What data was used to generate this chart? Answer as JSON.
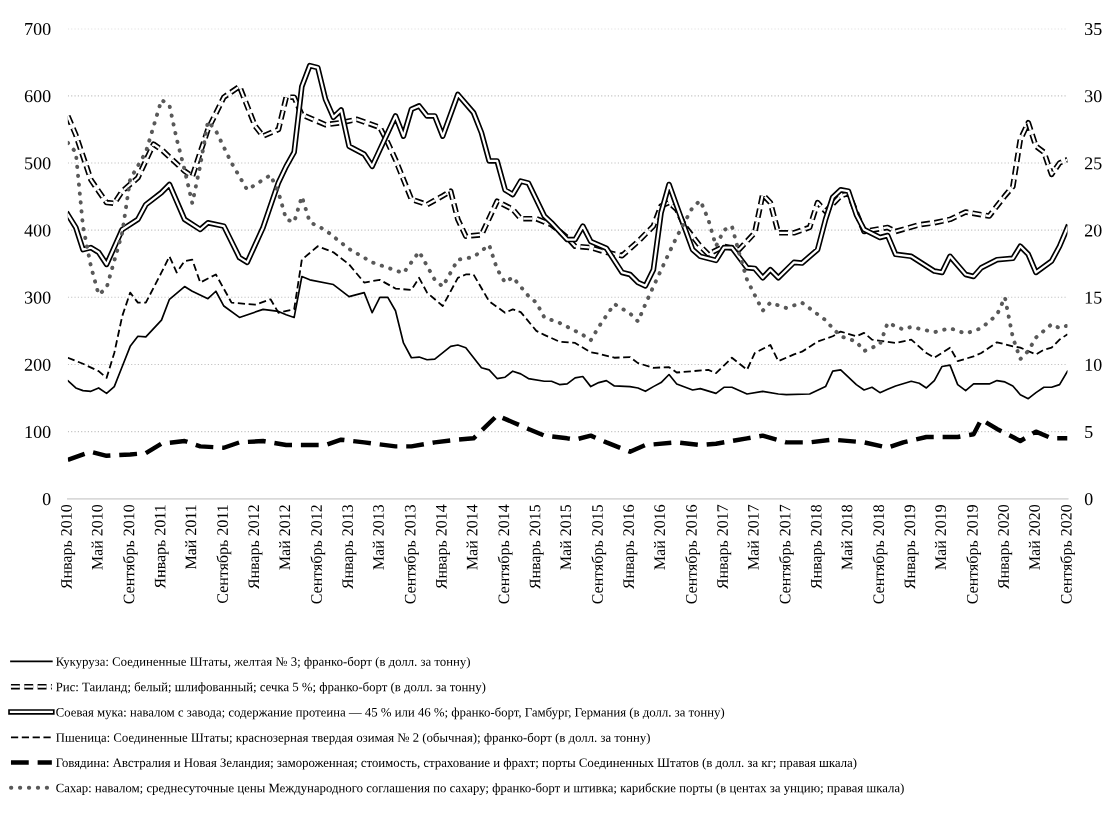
{
  "chart_data": {
    "type": "line",
    "xlim": [
      "2010-01",
      "2020-09"
    ],
    "xticks": [
      {
        "value": "2010-01",
        "label": "Январь 2010"
      },
      {
        "value": "2010-05",
        "label": "Май 2010"
      },
      {
        "value": "2010-09",
        "label": "Сентябрь 2010"
      },
      {
        "value": "2011-01",
        "label": "Январь 2011"
      },
      {
        "value": "2011-05",
        "label": "Май 2011"
      },
      {
        "value": "2011-09",
        "label": "Сентябрь 2011"
      },
      {
        "value": "2012-01",
        "label": "Январь 2012"
      },
      {
        "value": "2012-05",
        "label": "Май 2012"
      },
      {
        "value": "2012-09",
        "label": "Сентябрь 2012"
      },
      {
        "value": "2013-01",
        "label": "Январь 2013"
      },
      {
        "value": "2013-05",
        "label": "Май 2013"
      },
      {
        "value": "2013-09",
        "label": "Сентябрь 2013"
      },
      {
        "value": "2014-01",
        "label": "Январь 2014"
      },
      {
        "value": "2014-05",
        "label": "Май 2014"
      },
      {
        "value": "2014-09",
        "label": "Сентябрь 2014"
      },
      {
        "value": "2015-01",
        "label": "Январь 2015"
      },
      {
        "value": "2015-05",
        "label": "Май 2015"
      },
      {
        "value": "2015-09",
        "label": "Сентябрь 2015"
      },
      {
        "value": "2016-01",
        "label": "Январь 2016"
      },
      {
        "value": "2016-05",
        "label": "Май 2016"
      },
      {
        "value": "2016-09",
        "label": "Сентябрь 2016"
      },
      {
        "value": "2017-01",
        "label": "Январь 2017"
      },
      {
        "value": "2017-05",
        "label": "Май 2017"
      },
      {
        "value": "2017-09",
        "label": "Сентябрь 2017"
      },
      {
        "value": "2018-01",
        "label": "Январь 2018"
      },
      {
        "value": "2018-05",
        "label": "Май 2018"
      },
      {
        "value": "2018-09",
        "label": "Сентябрь 2018"
      },
      {
        "value": "2019-01",
        "label": "Январь 2019"
      },
      {
        "value": "2019-05",
        "label": "Май 2019"
      },
      {
        "value": "2019-09",
        "label": "Сентябрь 2019"
      },
      {
        "value": "2020-01",
        "label": "Январь 2020"
      },
      {
        "value": "2020-05",
        "label": "Май 2020"
      },
      {
        "value": "2020-09",
        "label": "Сентябрь 2020"
      }
    ],
    "ylim": [
      0,
      700
    ],
    "yticks": [
      0,
      100,
      200,
      300,
      400,
      500,
      600,
      700
    ],
    "y2lim": [
      0,
      35
    ],
    "y2ticks": [
      0,
      5,
      10,
      15,
      20,
      25,
      30,
      35
    ],
    "grid": "y",
    "legend": "bottom",
    "marker": "none",
    "series": [
      {
        "name": "Кукуруза: Соединенные Штаты, желтая № 3; франко-борт (в долл. за тонну)",
        "color": "#000000",
        "line_style": "solid",
        "x": [
          "2010-01",
          "2010-02",
          "2010-03",
          "2010-04",
          "2010-05",
          "2010-06",
          "2010-07",
          "2010-08",
          "2010-09",
          "2010-10",
          "2010-11",
          "2011-01",
          "2011-02",
          "2011-04",
          "2011-05",
          "2011-07",
          "2011-08",
          "2011-09",
          "2011-11",
          "2012-02",
          "2012-04",
          "2012-05",
          "2012-06",
          "2012-07",
          "2012-08",
          "2012-11",
          "2013-01",
          "2013-03",
          "2013-04",
          "2013-05",
          "2013-06",
          "2013-07",
          "2013-08",
          "2013-09",
          "2013-10",
          "2013-11",
          "2013-12",
          "2014-02",
          "2014-03",
          "2014-04",
          "2014-06",
          "2014-07",
          "2014-08",
          "2014-09",
          "2014-10",
          "2014-11",
          "2014-12",
          "2015-02",
          "2015-03",
          "2015-04",
          "2015-05",
          "2015-06",
          "2015-07",
          "2015-08",
          "2015-09",
          "2015-10",
          "2015-11",
          "2016-01",
          "2016-02",
          "2016-03",
          "2016-04",
          "2016-05",
          "2016-06",
          "2016-07",
          "2016-09",
          "2016-10",
          "2016-12",
          "2017-01",
          "2017-02",
          "2017-04",
          "2017-06",
          "2017-08",
          "2017-09",
          "2017-12",
          "2018-02",
          "2018-03",
          "2018-04",
          "2018-06",
          "2018-07",
          "2018-08",
          "2018-09",
          "2018-10",
          "2018-11",
          "2019-01",
          "2019-02",
          "2019-03",
          "2019-04",
          "2019-05",
          "2019-06",
          "2019-07",
          "2019-08",
          "2019-09",
          "2019-11",
          "2019-12",
          "2020-01",
          "2020-02",
          "2020-03",
          "2020-04",
          "2020-05",
          "2020-06",
          "2020-07",
          "2020-08",
          "2020-09"
        ],
        "values": [
          176,
          165,
          161,
          160,
          165,
          157,
          167,
          197,
          227,
          242,
          241,
          266,
          297,
          316,
          309,
          298,
          309,
          287,
          270,
          282,
          279,
          274,
          270,
          331,
          326,
          319,
          301,
          307,
          277,
          300,
          300,
          280,
          232,
          210,
          211,
          207,
          208,
          227,
          229,
          225,
          195,
          192,
          179,
          181,
          190,
          186,
          179,
          175,
          175,
          170,
          171,
          180,
          182,
          167,
          173,
          176,
          168,
          167,
          165,
          160,
          167,
          173,
          185,
          171,
          162,
          164,
          157,
          166,
          166,
          156,
          160,
          156,
          155,
          156,
          167,
          190,
          192,
          170,
          162,
          166,
          158,
          163,
          168,
          175,
          172,
          165,
          176,
          197,
          199,
          170,
          161,
          171,
          171,
          176,
          174,
          168,
          155,
          149,
          158,
          166,
          166,
          170,
          190
        ]
      },
      {
        "name": "Рис: Таиланд; белый; шлифованный; сечка 5 %; франко-борт (в долл. за тонну)",
        "color": "#000000",
        "line_style": "dashed",
        "x": [
          "2010-01",
          "2010-02",
          "2010-04",
          "2010-05",
          "2010-06",
          "2010-07",
          "2010-08",
          "2010-10",
          "2010-12",
          "2011-01",
          "2011-04",
          "2011-05",
          "2011-07",
          "2011-09",
          "2011-11",
          "2012-01",
          "2012-02",
          "2012-04",
          "2012-05",
          "2012-06",
          "2012-07",
          "2012-10",
          "2012-12",
          "2013-02",
          "2013-05",
          "2013-06",
          "2013-07",
          "2013-09",
          "2013-11",
          "2014-01",
          "2014-02",
          "2014-03",
          "2014-04",
          "2014-06",
          "2014-08",
          "2014-10",
          "2014-11",
          "2015-01",
          "2015-03",
          "2015-05",
          "2015-06",
          "2015-08",
          "2015-10",
          "2015-12",
          "2016-02",
          "2016-04",
          "2016-05",
          "2016-06",
          "2016-07",
          "2016-08",
          "2016-10",
          "2016-11",
          "2017-01",
          "2017-03",
          "2017-05",
          "2017-06",
          "2017-07",
          "2017-08",
          "2017-10",
          "2017-12",
          "2018-01",
          "2018-02",
          "2018-04",
          "2018-05",
          "2018-07",
          "2018-10",
          "2018-11",
          "2019-02",
          "2019-04",
          "2019-06",
          "2019-08",
          "2019-11",
          "2019-12",
          "2020-01",
          "2020-02",
          "2020-03",
          "2020-04",
          "2020-05",
          "2020-06",
          "2020-07",
          "2020-08",
          "2020-09"
        ],
        "values": [
          570,
          542,
          475,
          458,
          441,
          440,
          458,
          478,
          528,
          520,
          488,
          480,
          550,
          598,
          614,
          555,
          540,
          550,
          598,
          598,
          572,
          557,
          560,
          565,
          553,
          530,
          505,
          446,
          438,
          451,
          458,
          416,
          391,
          393,
          443,
          431,
          417,
          417,
          408,
          389,
          376,
          374,
          367,
          362,
          383,
          406,
          436,
          441,
          431,
          406,
          376,
          364,
          376,
          371,
          396,
          453,
          441,
          396,
          396,
          404,
          441,
          428,
          451,
          455,
          398,
          404,
          398,
          408,
          411,
          416,
          427,
          421,
          436,
          451,
          465,
          535,
          560,
          525,
          516,
          483,
          500,
          505
        ]
      },
      {
        "name": "Соевая мука: навалом с завода; содержание протеина — 45 % или 46 %; франко-борт, Гамбург, Германия (в долл. за тонну)",
        "color": "#000000",
        "line_style": "solid",
        "x": [
          "2010-01",
          "2010-02",
          "2010-03",
          "2010-04",
          "2010-05",
          "2010-06",
          "2010-08",
          "2010-10",
          "2010-11",
          "2011-01",
          "2011-02",
          "2011-04",
          "2011-06",
          "2011-07",
          "2011-09",
          "2011-11",
          "2011-12",
          "2012-02",
          "2012-04",
          "2012-05",
          "2012-06",
          "2012-07",
          "2012-08",
          "2012-09",
          "2012-10",
          "2012-11",
          "2012-12",
          "2013-01",
          "2013-03",
          "2013-04",
          "2013-07",
          "2013-08",
          "2013-09",
          "2013-10",
          "2013-11",
          "2013-12",
          "2014-01",
          "2014-03",
          "2014-05",
          "2014-06",
          "2014-07",
          "2014-08",
          "2014-09",
          "2014-10",
          "2014-11",
          "2014-12",
          "2015-02",
          "2015-03",
          "2015-05",
          "2015-06",
          "2015-07",
          "2015-08",
          "2015-10",
          "2015-12",
          "2016-01",
          "2016-02",
          "2016-03",
          "2016-04",
          "2016-05",
          "2016-06",
          "2016-07",
          "2016-09",
          "2016-10",
          "2016-12",
          "2017-01",
          "2017-02",
          "2017-04",
          "2017-05",
          "2017-06",
          "2017-07",
          "2017-08",
          "2017-10",
          "2017-11",
          "2018-01",
          "2018-02",
          "2018-03",
          "2018-04",
          "2018-05",
          "2018-06",
          "2018-07",
          "2018-09",
          "2018-10",
          "2018-11",
          "2019-01",
          "2019-04",
          "2019-05",
          "2019-06",
          "2019-08",
          "2019-09",
          "2019-10",
          "2019-12",
          "2020-02",
          "2020-03",
          "2020-04",
          "2020-05",
          "2020-07",
          "2020-08",
          "2020-09"
        ],
        "values": [
          423,
          404,
          371,
          374,
          367,
          349,
          401,
          416,
          438,
          456,
          468,
          416,
          401,
          411,
          406,
          359,
          352,
          404,
          471,
          495,
          516,
          614,
          645,
          642,
          595,
          568,
          579,
          525,
          513,
          495,
          570,
          540,
          580,
          585,
          570,
          570,
          540,
          602,
          575,
          545,
          503,
          503,
          460,
          453,
          473,
          470,
          421,
          411,
          386,
          386,
          406,
          383,
          373,
          337,
          334,
          322,
          317,
          341,
          426,
          468,
          436,
          371,
          361,
          355,
          374,
          374,
          344,
          343,
          329,
          341,
          329,
          352,
          351,
          371,
          416,
          449,
          460,
          458,
          423,
          401,
          389,
          392,
          364,
          361,
          339,
          337,
          361,
          334,
          331,
          344,
          356,
          358,
          376,
          364,
          337,
          354,
          376,
          404
        ]
      },
      {
        "name": "Пшеница: Соединенные Штаты; краснозерная твердая озимая № 2 (обычная); франко-борт (в долл. за тонну)",
        "color": "#000000",
        "line_style": "dashed",
        "x": [
          "2010-01",
          "2010-03",
          "2010-05",
          "2010-06",
          "2010-07",
          "2010-08",
          "2010-09",
          "2010-10",
          "2010-11",
          "2011-01",
          "2011-02",
          "2011-03",
          "2011-04",
          "2011-05",
          "2011-06",
          "2011-08",
          "2011-10",
          "2012-01",
          "2012-03",
          "2012-04",
          "2012-06",
          "2012-07",
          "2012-09",
          "2012-11",
          "2013-01",
          "2013-03",
          "2013-05",
          "2013-07",
          "2013-09",
          "2013-10",
          "2013-11",
          "2014-01",
          "2014-03",
          "2014-04",
          "2014-05",
          "2014-07",
          "2014-09",
          "2014-10",
          "2014-11",
          "2015-01",
          "2015-02",
          "2015-04",
          "2015-06",
          "2015-08",
          "2015-09",
          "2015-11",
          "2016-01",
          "2016-02",
          "2016-04",
          "2016-06",
          "2016-07",
          "2016-09",
          "2016-11",
          "2016-12",
          "2017-02",
          "2017-04",
          "2017-05",
          "2017-07",
          "2017-08",
          "2017-10",
          "2017-11",
          "2018-01",
          "2018-03",
          "2018-04",
          "2018-06",
          "2018-07",
          "2018-08",
          "2018-11",
          "2019-01",
          "2019-03",
          "2019-04",
          "2019-06",
          "2019-07",
          "2019-09",
          "2019-10",
          "2019-12",
          "2020-02",
          "2020-03",
          "2020-05",
          "2020-06",
          "2020-07",
          "2020-08",
          "2020-09"
        ],
        "values": [
          210,
          201,
          190,
          180,
          217,
          272,
          307,
          292,
          292,
          337,
          361,
          337,
          354,
          356,
          322,
          334,
          292,
          289,
          297,
          277,
          282,
          356,
          376,
          367,
          349,
          322,
          326,
          313,
          311,
          329,
          307,
          287,
          329,
          334,
          334,
          294,
          277,
          282,
          278,
          250,
          244,
          234,
          232,
          218,
          216,
          210,
          211,
          202,
          195,
          196,
          188,
          190,
          192,
          187,
          210,
          192,
          217,
          229,
          205,
          215,
          219,
          234,
          242,
          249,
          242,
          247,
          237,
          232,
          237,
          217,
          210,
          225,
          205,
          212,
          217,
          233,
          227,
          225,
          215,
          222,
          225,
          237,
          245
        ]
      },
      {
        "name": "Говядина: Австралия и Новая Зеландия; замороженная; стоимость, страхование и фрахт; порты Соединенных Штатов (в долл. за кг; правая шкала)",
        "color": "#000000",
        "line_style": "dashed",
        "axis": "y2",
        "x": [
          "2010-01",
          "2010-04",
          "2010-06",
          "2010-09",
          "2010-11",
          "2011-01",
          "2011-04",
          "2011-06",
          "2011-09",
          "2011-11",
          "2012-02",
          "2012-05",
          "2012-10",
          "2012-12",
          "2013-03",
          "2013-07",
          "2013-09",
          "2013-12",
          "2014-03",
          "2014-05",
          "2014-08",
          "2014-10",
          "2014-12",
          "2015-02",
          "2015-05",
          "2015-06",
          "2015-08",
          "2015-10",
          "2016-01",
          "2016-03",
          "2016-07",
          "2016-10",
          "2016-12",
          "2017-04",
          "2017-06",
          "2017-09",
          "2017-12",
          "2018-03",
          "2018-07",
          "2018-10",
          "2018-12",
          "2019-03",
          "2019-07",
          "2019-09",
          "2019-10",
          "2019-12",
          "2020-02",
          "2020-03",
          "2020-05",
          "2020-07",
          "2020-09"
        ],
        "values": [
          2.9,
          3.5,
          3.2,
          3.3,
          3.4,
          4.1,
          4.3,
          3.9,
          3.8,
          4.2,
          4.3,
          4.0,
          4.0,
          4.4,
          4.2,
          3.9,
          3.9,
          4.2,
          4.4,
          4.5,
          6.2,
          5.7,
          5.2,
          4.7,
          4.5,
          4.4,
          4.7,
          4.2,
          3.5,
          4.0,
          4.2,
          4.0,
          4.1,
          4.5,
          4.7,
          4.2,
          4.2,
          4.4,
          4.2,
          3.8,
          4.2,
          4.6,
          4.6,
          4.8,
          5.9,
          5.2,
          4.6,
          4.3,
          5.0,
          4.5,
          4.5
        ]
      },
      {
        "name": "Сахар: навалом; среднесуточные цены Международного соглашения по сахару; франко-борт и штивка; карибские порты (в центах за унцию; правая шкала)",
        "color": "#595959",
        "line_style": "dotted",
        "axis": "y2",
        "x": [
          "2010-01",
          "2010-02",
          "2010-03",
          "2010-04",
          "2010-05",
          "2010-06",
          "2010-08",
          "2010-09",
          "2010-11",
          "2011-01",
          "2011-02",
          "2011-03",
          "2011-04",
          "2011-05",
          "2011-06",
          "2011-07",
          "2011-08",
          "2011-10",
          "2011-12",
          "2012-03",
          "2012-04",
          "2012-05",
          "2012-06",
          "2012-07",
          "2012-08",
          "2012-10",
          "2013-01",
          "2013-04",
          "2013-08",
          "2013-10",
          "2013-12",
          "2014-01",
          "2014-03",
          "2014-05",
          "2014-07",
          "2014-08",
          "2014-09",
          "2014-10",
          "2014-12",
          "2015-01",
          "2015-02",
          "2015-04",
          "2015-06",
          "2015-07",
          "2015-08",
          "2015-09",
          "2015-11",
          "2016-01",
          "2016-02",
          "2016-03",
          "2016-04",
          "2016-06",
          "2016-07",
          "2016-08",
          "2016-09",
          "2016-10",
          "2016-11",
          "2016-12",
          "2017-01",
          "2017-02",
          "2017-03",
          "2017-04",
          "2017-06",
          "2017-07",
          "2017-09",
          "2017-11",
          "2018-02",
          "2018-03",
          "2018-04",
          "2018-06",
          "2018-07",
          "2018-09",
          "2018-10",
          "2018-12",
          "2019-01",
          "2019-04",
          "2019-06",
          "2019-08",
          "2019-10",
          "2019-12",
          "2020-01",
          "2020-02",
          "2020-03",
          "2020-04",
          "2020-05",
          "2020-07",
          "2020-08",
          "2020-09"
        ],
        "values": [
          26.5,
          25.8,
          20.3,
          17.3,
          15.2,
          15.7,
          19.8,
          23.8,
          25.8,
          29.7,
          29.3,
          26.8,
          24.5,
          22.0,
          24.8,
          28.1,
          27.4,
          25.0,
          23.0,
          24.1,
          22.8,
          20.8,
          20.6,
          22.5,
          20.6,
          20.0,
          18.6,
          17.6,
          16.8,
          18.4,
          16.3,
          15.8,
          17.8,
          18.0,
          18.9,
          17.1,
          16.1,
          16.5,
          15.1,
          14.6,
          13.5,
          13.1,
          12.5,
          12.2,
          11.8,
          12.8,
          14.5,
          13.8,
          13.2,
          14.5,
          15.8,
          18.3,
          19.5,
          20.6,
          21.7,
          22.2,
          20.8,
          18.8,
          20.0,
          20.3,
          18.3,
          16.3,
          14.0,
          14.6,
          14.2,
          14.6,
          13.3,
          12.7,
          12.1,
          11.7,
          11.0,
          11.5,
          13.1,
          12.6,
          12.8,
          12.4,
          12.7,
          12.3,
          12.7,
          13.7,
          15.0,
          12.0,
          10.4,
          11.0,
          12.0,
          13.0,
          12.7,
          12.9
        ]
      }
    ]
  }
}
